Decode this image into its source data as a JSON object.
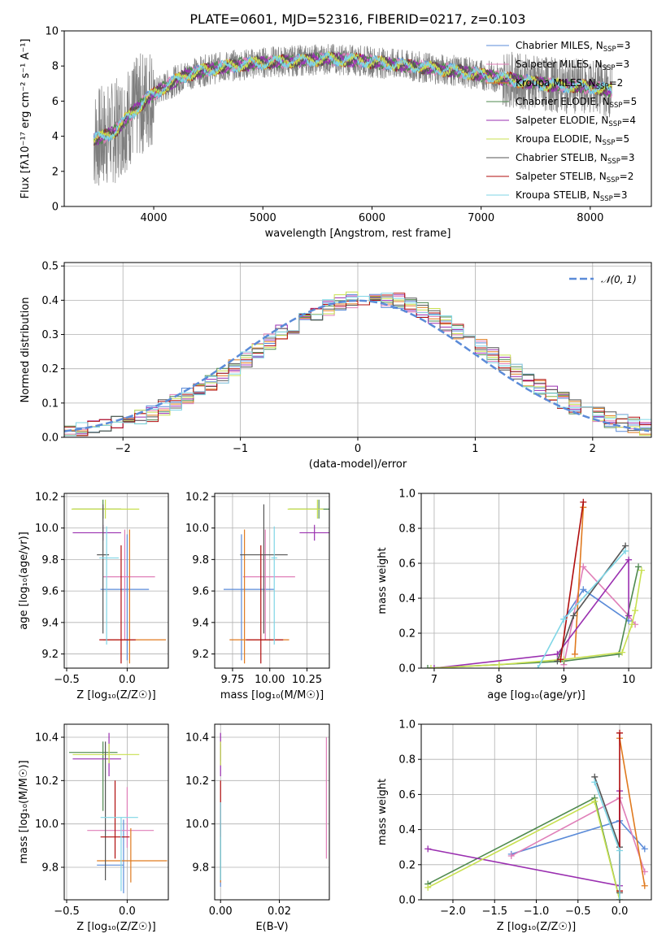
{
  "colors": {
    "Chabrier MILES": "#5b8bd8",
    "Salpeter MILES": "#e07fb8",
    "Kroupa MILES": "#e07a1f",
    "Chabrier ELODIE": "#4f8a4f",
    "Salpeter ELODIE": "#9a2fb0",
    "Kroupa ELODIE": "#c8e050",
    "Chabrier STELIB": "#555555",
    "Salpeter STELIB": "#b00d0d",
    "Kroupa STELIB": "#7fd6e6"
  },
  "chart_data": [
    {
      "id": "spectrum",
      "type": "line",
      "title": "PLATE=0601, MJD=52316, FIBERID=0217, z=0.103",
      "xlabel": "wavelength [Angstrom, rest frame]",
      "ylabel": "Flux [fλ10⁻¹⁷ erg cm⁻² s⁻¹ A⁻¹]",
      "xlim": [
        3180,
        8560
      ],
      "ylim": [
        0,
        10
      ],
      "xticks": [
        4000,
        5000,
        6000,
        7000,
        8000
      ],
      "yticks": [
        0,
        2,
        4,
        6,
        8,
        10
      ],
      "continuum": [
        [
          3450,
          3.8
        ],
        [
          3550,
          4.0
        ],
        [
          3650,
          4.3
        ],
        [
          3750,
          5.0
        ],
        [
          3850,
          5.6
        ],
        [
          3950,
          6.2
        ],
        [
          4050,
          6.6
        ],
        [
          4150,
          7.0
        ],
        [
          4300,
          7.5
        ],
        [
          4500,
          7.8
        ],
        [
          4700,
          8.0
        ],
        [
          5000,
          8.2
        ],
        [
          5300,
          8.3
        ],
        [
          5600,
          8.4
        ],
        [
          5900,
          8.3
        ],
        [
          6200,
          8.1
        ],
        [
          6500,
          7.9
        ],
        [
          6800,
          7.7
        ],
        [
          7100,
          7.4
        ],
        [
          7400,
          7.1
        ],
        [
          7700,
          6.9
        ],
        [
          8000,
          6.8
        ],
        [
          8200,
          6.6
        ]
      ],
      "legend": [
        {
          "series": "Chabrier MILES",
          "label": "Chabrier MILES, N",
          "sub": "SSP",
          "suffix": "=3"
        },
        {
          "series": "Salpeter MILES",
          "label": "Salpeter MILES, N",
          "sub": "SSP",
          "suffix": "=3"
        },
        {
          "series": "Kroupa MILES",
          "label": "Kroupa MILES, N",
          "sub": "SSP",
          "suffix": "=2"
        },
        {
          "series": "Chabrier ELODIE",
          "label": "Chabrier ELODIE, N",
          "sub": "SSP",
          "suffix": "=5"
        },
        {
          "series": "Salpeter ELODIE",
          "label": "Salpeter ELODIE, N",
          "sub": "SSP",
          "suffix": "=4"
        },
        {
          "series": "Kroupa ELODIE",
          "label": "Kroupa ELODIE, N",
          "sub": "SSP",
          "suffix": "=5"
        },
        {
          "series": "Chabrier STELIB",
          "label": "Chabrier STELIB, N",
          "sub": "SSP",
          "suffix": "=3"
        },
        {
          "series": "Salpeter STELIB",
          "label": "Salpeter STELIB, N",
          "sub": "SSP",
          "suffix": "=2"
        },
        {
          "series": "Kroupa STELIB",
          "label": "Kroupa STELIB, N",
          "sub": "SSP",
          "suffix": "=3"
        }
      ],
      "legend_placement": "right"
    },
    {
      "id": "residuals",
      "type": "line",
      "xlabel": "(data-model)/error",
      "ylabel": "Normed distribution",
      "xlim": [
        -2.5,
        2.5
      ],
      "ylim": [
        0,
        0.51
      ],
      "xticks": [
        -2,
        -1,
        0,
        1,
        2
      ],
      "yticks": [
        0.0,
        0.1,
        0.2,
        0.3,
        0.4,
        0.5
      ],
      "grid": true,
      "bin_width": 0.1,
      "legend": "𝒩(0, 1)",
      "legend_placement": "top-right"
    },
    {
      "id": "age-vs-z",
      "type": "scatter",
      "xlabel": "Z [log₁₀(Z/Z☉)]",
      "ylabel": "age  [log₁₀(age/yr)]",
      "xlim": [
        -0.52,
        0.34
      ],
      "ylim": [
        9.11,
        10.22
      ],
      "xticks": [
        -0.5,
        0.0
      ],
      "yticks": [
        9.2,
        9.4,
        9.6,
        9.8,
        10.0,
        10.2
      ],
      "grid": true,
      "points": [
        {
          "series": "Chabrier MILES",
          "x": 0.0,
          "y": 9.61,
          "xerr": [
            0.22,
            0.18
          ],
          "yerr": [
            0.45,
            0.35
          ]
        },
        {
          "series": "Salpeter MILES",
          "x": -0.02,
          "y": 9.69,
          "xerr": [
            0.18,
            0.25
          ],
          "yerr": [
            0.4,
            0.3
          ]
        },
        {
          "series": "Kroupa MILES",
          "x": 0.02,
          "y": 9.29,
          "xerr": [
            0.22,
            0.3
          ],
          "yerr": [
            0.15,
            0.7
          ]
        },
        {
          "series": "Chabrier ELODIE",
          "x": -0.2,
          "y": 10.12,
          "xerr": [
            0.25,
            0.15
          ],
          "yerr": [
            0.06,
            0.06
          ]
        },
        {
          "series": "Salpeter ELODIE",
          "x": -0.2,
          "y": 9.97,
          "xerr": [
            0.25,
            0.15
          ],
          "yerr": [
            0.05,
            0.05
          ]
        },
        {
          "series": "Kroupa ELODIE",
          "x": -0.18,
          "y": 10.12,
          "xerr": [
            0.28,
            0.28
          ],
          "yerr": [
            0.06,
            0.06
          ]
        },
        {
          "series": "Chabrier STELIB",
          "x": -0.2,
          "y": 9.83,
          "xerr": [
            0.05,
            0.05
          ],
          "yerr": [
            0.5,
            0.32
          ]
        },
        {
          "series": "Salpeter STELIB",
          "x": -0.05,
          "y": 9.29,
          "xerr": [
            0.18,
            0.12
          ],
          "yerr": [
            0.15,
            0.6
          ]
        },
        {
          "series": "Kroupa STELIB",
          "x": -0.17,
          "y": 9.81,
          "xerr": [
            0.06,
            0.1
          ],
          "yerr": [
            0.55,
            0.2
          ]
        }
      ]
    },
    {
      "id": "age-vs-mass",
      "type": "scatter",
      "xlabel": "mass [log₁₀(M/M☉)]",
      "ylabel": "",
      "xlim": [
        9.63,
        10.4
      ],
      "ylim": [
        9.11,
        10.22
      ],
      "xticks": [
        9.75,
        10.0,
        10.25
      ],
      "yticks": [
        9.2,
        9.4,
        9.6,
        9.8,
        10.0,
        10.2
      ],
      "grid": true,
      "points": [
        {
          "series": "Chabrier MILES",
          "x": 9.81,
          "y": 9.61,
          "xerr": [
            0.12,
            0.22
          ],
          "yerr": [
            0.45,
            0.35
          ]
        },
        {
          "series": "Salpeter MILES",
          "x": 9.97,
          "y": 9.69,
          "xerr": [
            0.15,
            0.2
          ],
          "yerr": [
            0.4,
            0.3
          ]
        },
        {
          "series": "Kroupa MILES",
          "x": 9.83,
          "y": 9.29,
          "xerr": [
            0.1,
            0.3
          ],
          "yerr": [
            0.15,
            0.7
          ]
        },
        {
          "series": "Chabrier ELODIE",
          "x": 10.33,
          "y": 10.12,
          "xerr": [
            0.2,
            0.08
          ],
          "yerr": [
            0.06,
            0.06
          ]
        },
        {
          "series": "Salpeter ELODIE",
          "x": 10.3,
          "y": 9.97,
          "xerr": [
            0.1,
            0.1
          ],
          "yerr": [
            0.05,
            0.05
          ]
        },
        {
          "series": "Kroupa ELODIE",
          "x": 10.32,
          "y": 10.12,
          "xerr": [
            0.2,
            0.04
          ],
          "yerr": [
            0.06,
            0.06
          ]
        },
        {
          "series": "Chabrier STELIB",
          "x": 9.96,
          "y": 9.83,
          "xerr": [
            0.16,
            0.16
          ],
          "yerr": [
            0.5,
            0.32
          ]
        },
        {
          "series": "Salpeter STELIB",
          "x": 9.94,
          "y": 9.29,
          "xerr": [
            0.1,
            0.15
          ],
          "yerr": [
            0.15,
            0.6
          ]
        },
        {
          "series": "Kroupa STELIB",
          "x": 10.03,
          "y": 9.81,
          "xerr": [
            0.02,
            0.02
          ],
          "yerr": [
            0.55,
            0.2
          ]
        }
      ]
    },
    {
      "id": "weight-vs-age",
      "type": "line",
      "xlabel": "age  [log₁₀(age/yr)]",
      "ylabel": "mass weight",
      "xlim": [
        6.8,
        10.35
      ],
      "ylim": [
        0,
        1.0
      ],
      "xticks": [
        7,
        8,
        9,
        10
      ],
      "yticks": [
        0.0,
        0.2,
        0.4,
        0.6,
        0.8,
        1.0
      ],
      "grid": true,
      "series": [
        {
          "name": "Chabrier MILES",
          "x": [
            9.0,
            9.3,
            10.0
          ],
          "y": [
            0.28,
            0.45,
            0.27
          ]
        },
        {
          "name": "Salpeter MILES",
          "x": [
            9.0,
            9.3,
            10.0,
            10.1
          ],
          "y": [
            0.02,
            0.58,
            0.3,
            0.25
          ]
        },
        {
          "name": "Kroupa MILES",
          "x": [
            9.17,
            9.3
          ],
          "y": [
            0.08,
            0.92
          ]
        },
        {
          "name": "Chabrier ELODIE",
          "x": [
            6.9,
            8.0,
            9.0,
            9.85,
            10.15
          ],
          "y": [
            0.0,
            0.02,
            0.04,
            0.08,
            0.58
          ]
        },
        {
          "name": "Salpeter ELODIE",
          "x": [
            7.0,
            8.9,
            10.0,
            10.0
          ],
          "y": [
            0.0,
            0.08,
            0.62,
            0.3
          ]
        },
        {
          "name": "Kroupa ELODIE",
          "x": [
            6.95,
            8.0,
            9.0,
            9.9,
            10.05,
            10.1,
            10.2
          ],
          "y": [
            0.0,
            0.02,
            0.05,
            0.09,
            0.25,
            0.33,
            0.56
          ]
        },
        {
          "name": "Chabrier STELIB",
          "x": [
            8.9,
            9.15,
            9.95
          ],
          "y": [
            0.04,
            0.3,
            0.7
          ]
        },
        {
          "name": "Salpeter STELIB",
          "x": [
            8.95,
            9.3
          ],
          "y": [
            0.05,
            0.95
          ]
        },
        {
          "name": "Kroupa STELIB",
          "x": [
            8.6,
            9.0,
            9.95
          ],
          "y": [
            0.0,
            0.28,
            0.67
          ]
        }
      ]
    },
    {
      "id": "mass-vs-z",
      "type": "scatter",
      "xlabel": "Z [log₁₀(Z/Z☉)]",
      "ylabel": "mass [log₁₀(M/M☉)]",
      "xlim": [
        -0.52,
        0.34
      ],
      "ylim": [
        9.65,
        10.46
      ],
      "xticks": [
        -0.5,
        0.0
      ],
      "yticks": [
        9.8,
        10.0,
        10.2,
        10.4
      ],
      "grid": true,
      "points": [
        {
          "series": "Chabrier MILES",
          "x": -0.03,
          "y": 9.81,
          "xerr": [
            0.22,
            0.0
          ],
          "yerr": [
            0.13,
            0.21
          ]
        },
        {
          "series": "Salpeter MILES",
          "x": 0.0,
          "y": 9.97,
          "xerr": [
            0.33,
            0.22
          ],
          "yerr": [
            0.08,
            0.2
          ]
        },
        {
          "series": "Kroupa MILES",
          "x": 0.03,
          "y": 9.83,
          "xerr": [
            0.28,
            0.3
          ],
          "yerr": [
            0.1,
            0.15
          ]
        },
        {
          "series": "Chabrier ELODIE",
          "x": -0.2,
          "y": 10.33,
          "xerr": [
            0.28,
            0.12
          ],
          "yerr": [
            0.27,
            0.05
          ]
        },
        {
          "series": "Salpeter ELODIE",
          "x": -0.15,
          "y": 10.3,
          "xerr": [
            0.3,
            0.1
          ],
          "yerr": [
            0.08,
            0.12
          ]
        },
        {
          "series": "Kroupa ELODIE",
          "x": -0.15,
          "y": 10.32,
          "xerr": [
            0.3,
            0.25
          ],
          "yerr": [
            0.04,
            0.05
          ]
        },
        {
          "series": "Chabrier STELIB",
          "x": -0.18,
          "y": 9.94,
          "xerr": [
            0.0,
            0.0
          ],
          "yerr": [
            0.2,
            0.44
          ]
        },
        {
          "series": "Salpeter STELIB",
          "x": -0.1,
          "y": 9.94,
          "xerr": [
            0.12,
            0.12
          ],
          "yerr": [
            0.1,
            0.26
          ]
        },
        {
          "series": "Kroupa STELIB",
          "x": -0.05,
          "y": 10.03,
          "xerr": [
            0.17,
            0.14
          ],
          "yerr": [
            0.34,
            0.0
          ]
        }
      ]
    },
    {
      "id": "mass-vs-ebv",
      "type": "scatter",
      "xlabel": "E(B-V)",
      "ylabel": "",
      "xlim": [
        -0.002,
        0.037
      ],
      "ylim": [
        9.65,
        10.46
      ],
      "xticks": [
        0.0,
        0.02
      ],
      "yticks": [
        9.8,
        10.0,
        10.2,
        10.4
      ],
      "grid": true,
      "points": [
        {
          "series": "Chabrier MILES",
          "x": 0.0,
          "y": 9.81,
          "yerr": [
            0.1,
            0.2
          ]
        },
        {
          "series": "Salpeter MILES",
          "x": 0.036,
          "y": 10.1,
          "yerr": [
            0.26,
            0.3
          ]
        },
        {
          "series": "Kroupa MILES",
          "x": 0.0,
          "y": 9.83,
          "yerr": [
            0.1,
            0.15
          ]
        },
        {
          "series": "Chabrier ELODIE",
          "x": 0.0,
          "y": 10.33,
          "yerr": [
            0.04,
            0.04
          ]
        },
        {
          "series": "Salpeter ELODIE",
          "x": 0.0,
          "y": 10.3,
          "yerr": [
            0.08,
            0.12
          ]
        },
        {
          "series": "Kroupa ELODIE",
          "x": 0.0,
          "y": 10.32,
          "yerr": [
            0.05,
            0.06
          ]
        },
        {
          "series": "Chabrier STELIB",
          "x": 0.0,
          "y": 9.94,
          "yerr": [
            0.2,
            0.16
          ]
        },
        {
          "series": "Salpeter STELIB",
          "x": 0.0,
          "y": 10.0,
          "yerr": [
            0.06,
            0.2
          ]
        },
        {
          "series": "Kroupa STELIB",
          "x": 0.0,
          "y": 9.94,
          "yerr": [
            0.2,
            0.16
          ]
        }
      ]
    },
    {
      "id": "weight-vs-z",
      "type": "line",
      "xlabel": "Z [log₁₀(Z/Z☉)]",
      "ylabel": "mass weight",
      "xlim": [
        -2.38,
        0.38
      ],
      "ylim": [
        0,
        1.0
      ],
      "xticks": [
        -2.0,
        -1.5,
        -1.0,
        -0.5,
        0.0
      ],
      "yticks": [
        0.0,
        0.2,
        0.4,
        0.6,
        0.8,
        1.0
      ],
      "grid": true,
      "series": [
        {
          "name": "Chabrier MILES",
          "x": [
            -1.3,
            0.0,
            0.3
          ],
          "y": [
            0.26,
            0.45,
            0.29
          ]
        },
        {
          "name": "Salpeter MILES",
          "x": [
            -1.3,
            0.0,
            0.3
          ],
          "y": [
            0.25,
            0.58,
            0.16
          ]
        },
        {
          "name": "Kroupa MILES",
          "x": [
            0.0,
            0.3
          ],
          "y": [
            0.92,
            0.08
          ]
        },
        {
          "name": "Chabrier ELODIE",
          "x": [
            -2.3,
            -0.3,
            0.0
          ],
          "y": [
            0.09,
            0.58,
            0.0
          ]
        },
        {
          "name": "Salpeter ELODIE",
          "x": [
            -2.3,
            0.0,
            0.0
          ],
          "y": [
            0.29,
            0.08,
            0.62
          ]
        },
        {
          "name": "Kroupa ELODIE",
          "x": [
            -2.3,
            -0.3,
            0.0
          ],
          "y": [
            0.07,
            0.56,
            0.0
          ]
        },
        {
          "name": "Chabrier STELIB",
          "x": [
            -0.3,
            0.0,
            0.0
          ],
          "y": [
            0.7,
            0.3,
            0.04
          ]
        },
        {
          "name": "Salpeter STELIB",
          "x": [
            0.0,
            0.0
          ],
          "y": [
            0.95,
            0.05
          ]
        },
        {
          "name": "Kroupa STELIB",
          "x": [
            -0.3,
            0.0,
            0.0
          ],
          "y": [
            0.67,
            0.28,
            0.0
          ]
        }
      ]
    }
  ]
}
